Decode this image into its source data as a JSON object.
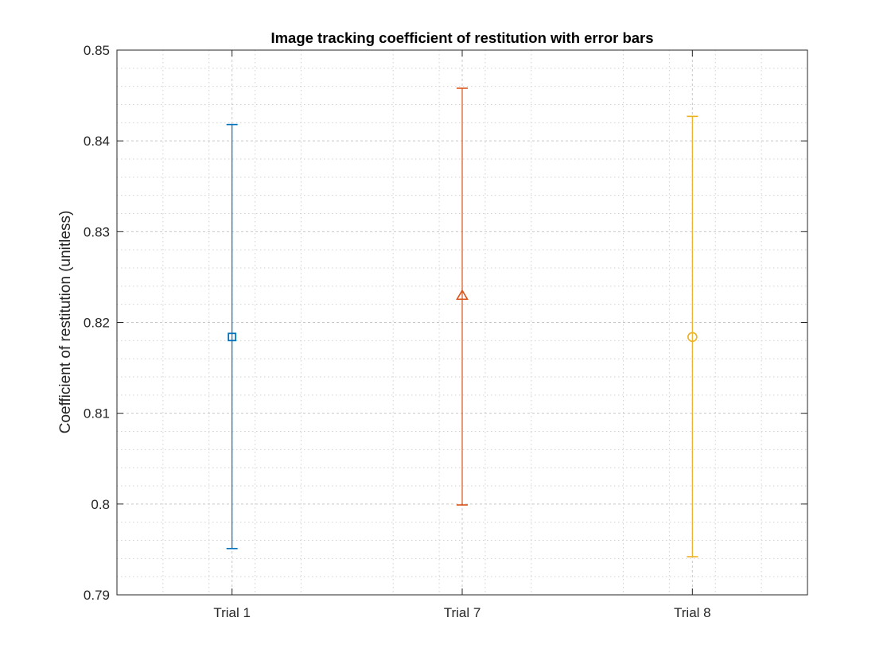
{
  "chart_data": {
    "type": "scatter",
    "title": "Image tracking coefficient of restitution with error bars",
    "xlabel": "",
    "ylabel": "Coefficient of restitution (unitless)",
    "categories": [
      "Trial 1",
      "Trial 7",
      "Trial 8"
    ],
    "ylim": [
      0.79,
      0.85
    ],
    "yticks": [
      0.79,
      0.8,
      0.81,
      0.82,
      0.83,
      0.84,
      0.85
    ],
    "ytick_labels": [
      "0.79",
      "0.8",
      "0.81",
      "0.82",
      "0.83",
      "0.84",
      "0.85"
    ],
    "grid": true,
    "minor_grid": true,
    "series": [
      {
        "category": "Trial 1",
        "value": 0.8184,
        "lower": 0.7951,
        "upper": 0.8418,
        "marker": "square",
        "color": "#0072BD"
      },
      {
        "category": "Trial 7",
        "value": 0.823,
        "lower": 0.7999,
        "upper": 0.8458,
        "marker": "triangle",
        "color": "#D95319"
      },
      {
        "category": "Trial 8",
        "value": 0.8184,
        "lower": 0.7942,
        "upper": 0.8427,
        "marker": "circle",
        "color": "#EDB120"
      }
    ]
  }
}
